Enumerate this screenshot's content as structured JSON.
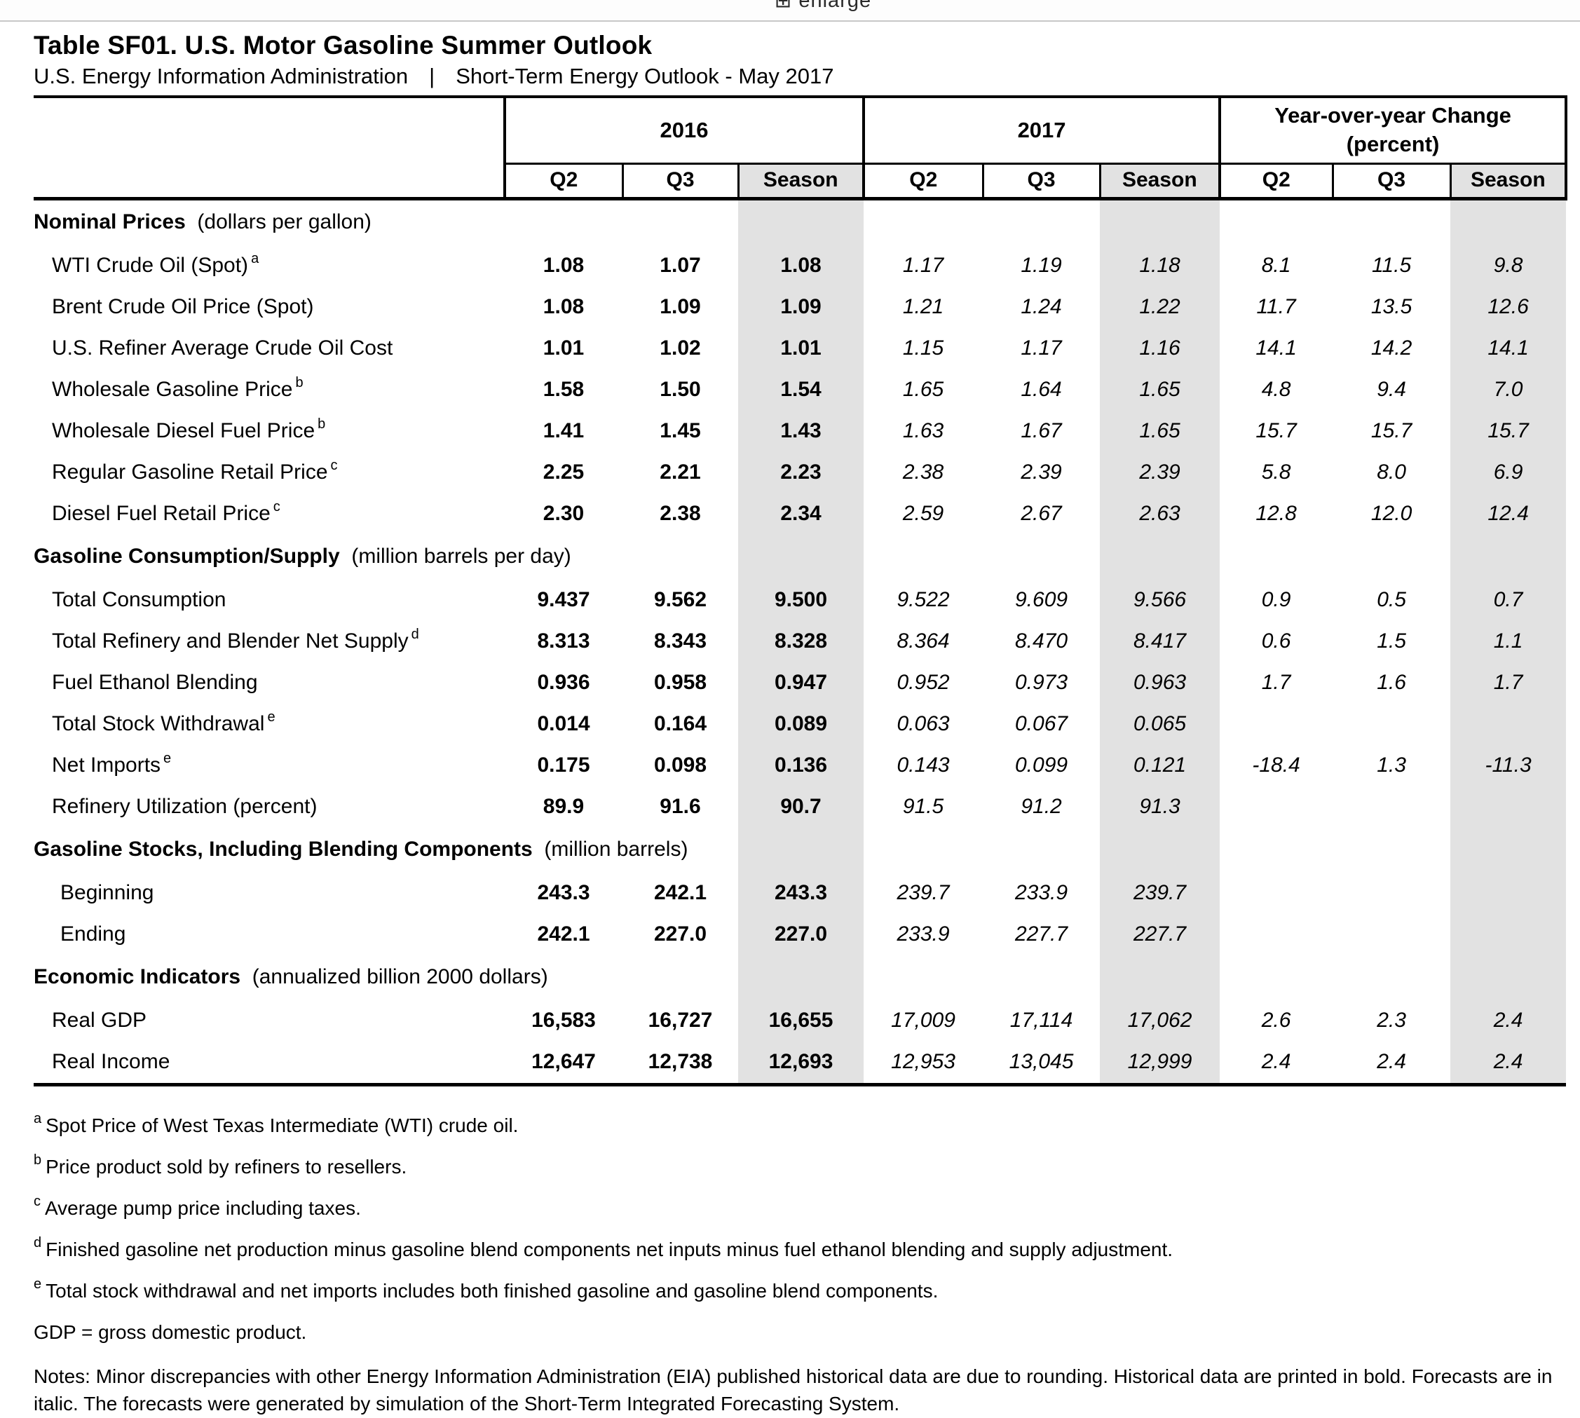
{
  "top_bar": {
    "enlarge_label": "enlarge"
  },
  "header": {
    "title": "Table SF01. U.S. Motor Gasoline Summer Outlook",
    "source": "U.S. Energy Information Administration",
    "separator": "|",
    "report": "Short-Term Energy Outlook - May 2017"
  },
  "table": {
    "col_groups": [
      {
        "label": "2016",
        "sublabel": ""
      },
      {
        "label": "2017",
        "sublabel": ""
      },
      {
        "label": "Year-over-year Change",
        "sublabel": "(percent)"
      }
    ],
    "sub_headers": [
      "Q2",
      "Q3",
      "Season",
      "Q2",
      "Q3",
      "Season",
      "Q2",
      "Q3",
      "Season"
    ],
    "sections": [
      {
        "label": "Nominal Prices",
        "unit": "(dollars per gallon)",
        "rows": [
          {
            "label": "WTI Crude Oil (Spot)",
            "sup": "a",
            "values": [
              "1.08",
              "1.07",
              "1.08",
              "1.17",
              "1.19",
              "1.18",
              "8.1",
              "11.5",
              "9.8"
            ]
          },
          {
            "label": "Brent Crude Oil Price (Spot)",
            "sup": "",
            "values": [
              "1.08",
              "1.09",
              "1.09",
              "1.21",
              "1.24",
              "1.22",
              "11.7",
              "13.5",
              "12.6"
            ]
          },
          {
            "label": "U.S. Refiner Average Crude Oil Cost",
            "sup": "",
            "values": [
              "1.01",
              "1.02",
              "1.01",
              "1.15",
              "1.17",
              "1.16",
              "14.1",
              "14.2",
              "14.1"
            ]
          },
          {
            "label": "Wholesale Gasoline Price",
            "sup": "b",
            "values": [
              "1.58",
              "1.50",
              "1.54",
              "1.65",
              "1.64",
              "1.65",
              "4.8",
              "9.4",
              "7.0"
            ]
          },
          {
            "label": "Wholesale Diesel Fuel Price",
            "sup": "b",
            "values": [
              "1.41",
              "1.45",
              "1.43",
              "1.63",
              "1.67",
              "1.65",
              "15.7",
              "15.7",
              "15.7"
            ]
          },
          {
            "label": "Regular Gasoline Retail Price",
            "sup": "c",
            "values": [
              "2.25",
              "2.21",
              "2.23",
              "2.38",
              "2.39",
              "2.39",
              "5.8",
              "8.0",
              "6.9"
            ]
          },
          {
            "label": "Diesel Fuel Retail Price",
            "sup": "c",
            "values": [
              "2.30",
              "2.38",
              "2.34",
              "2.59",
              "2.67",
              "2.63",
              "12.8",
              "12.0",
              "12.4"
            ]
          }
        ]
      },
      {
        "label": "Gasoline Consumption/Supply",
        "unit": "(million barrels per day)",
        "rows": [
          {
            "label": "Total Consumption",
            "sup": "",
            "values": [
              "9.437",
              "9.562",
              "9.500",
              "9.522",
              "9.609",
              "9.566",
              "0.9",
              "0.5",
              "0.7"
            ]
          },
          {
            "label": "Total Refinery and Blender Net Supply",
            "sup": "d",
            "values": [
              "8.313",
              "8.343",
              "8.328",
              "8.364",
              "8.470",
              "8.417",
              "0.6",
              "1.5",
              "1.1"
            ]
          },
          {
            "label": "Fuel Ethanol Blending",
            "sup": "",
            "values": [
              "0.936",
              "0.958",
              "0.947",
              "0.952",
              "0.973",
              "0.963",
              "1.7",
              "1.6",
              "1.7"
            ]
          },
          {
            "label": "Total Stock Withdrawal",
            "sup": "e",
            "values": [
              "0.014",
              "0.164",
              "0.089",
              "0.063",
              "0.067",
              "0.065",
              "",
              "",
              ""
            ]
          },
          {
            "label": "Net Imports",
            "sup": "e",
            "values": [
              "0.175",
              "0.098",
              "0.136",
              "0.143",
              "0.099",
              "0.121",
              "-18.4",
              "1.3",
              "-11.3"
            ]
          },
          {
            "label": "Refinery Utilization (percent)",
            "sup": "",
            "values": [
              "89.9",
              "91.6",
              "90.7",
              "91.5",
              "91.2",
              "91.3",
              "",
              "",
              ""
            ]
          }
        ]
      },
      {
        "label": "Gasoline Stocks, Including Blending Components",
        "unit": "(million barrels)",
        "rows": [
          {
            "label": "Beginning",
            "sup": "",
            "indent": 2,
            "values": [
              "243.3",
              "242.1",
              "243.3",
              "239.7",
              "233.9",
              "239.7",
              "",
              "",
              ""
            ]
          },
          {
            "label": "Ending",
            "sup": "",
            "indent": 2,
            "values": [
              "242.1",
              "227.0",
              "227.0",
              "233.9",
              "227.7",
              "227.7",
              "",
              "",
              ""
            ]
          }
        ]
      },
      {
        "label": "Economic Indicators",
        "unit": "(annualized billion 2000 dollars)",
        "rows": [
          {
            "label": "Real GDP",
            "sup": "",
            "values": [
              "16,583",
              "16,727",
              "16,655",
              "17,009",
              "17,114",
              "17,062",
              "2.6",
              "2.3",
              "2.4"
            ]
          },
          {
            "label": "Real Income",
            "sup": "",
            "values": [
              "12,647",
              "12,738",
              "12,693",
              "12,953",
              "13,045",
              "12,999",
              "2.4",
              "2.4",
              "2.4"
            ]
          }
        ]
      }
    ]
  },
  "footnotes": [
    {
      "sup": "a",
      "text": "Spot Price of West Texas Intermediate (WTI) crude oil."
    },
    {
      "sup": "b",
      "text": "Price product sold by refiners to resellers."
    },
    {
      "sup": "c",
      "text": "Average pump price including taxes."
    },
    {
      "sup": "d",
      "text": "Finished gasoline net production minus gasoline blend components net inputs minus fuel ethanol blending and supply adjustment."
    },
    {
      "sup": "e",
      "text": "Total stock withdrawal and net imports includes both finished gasoline and gasoline blend components."
    },
    {
      "sup": "",
      "text": "GDP = gross domestic product."
    }
  ],
  "notes": "Notes: Minor discrepancies with other Energy Information Administration (EIA) published historical data are due to rounding. Historical data are printed in bold. Forecasts are in italic. The forecasts were generated by simulation of the Short-Term Integrated Forecasting System."
}
